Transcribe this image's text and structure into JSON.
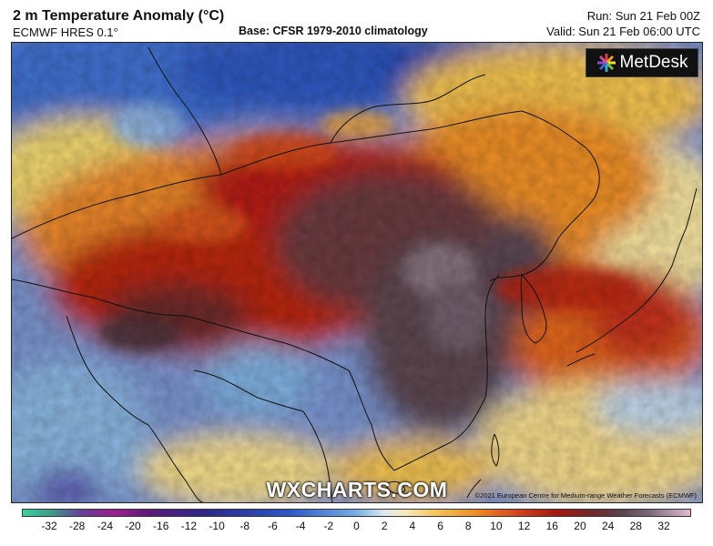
{
  "header": {
    "title": "2 m Temperature Anomaly (°C)",
    "model": "ECMWF HRES 0.1°",
    "base": "Base: CFSR 1979-2010 climatology",
    "run": "Run: Sun 21 Feb 00Z",
    "valid": "Valid: Sun 21 Feb 06:00 UTC"
  },
  "branding": {
    "logo_text": "MetDesk",
    "logo_icon": "metdesk-burst-icon",
    "watermark": "WXCHARTS.COM",
    "credit": "©2021 European Centre for Medium-range Weather Forecasts (ECMWF)"
  },
  "colorbar": {
    "ticks": [
      "-32",
      "-28",
      "-24",
      "-20",
      "-16",
      "-12",
      "-10",
      "-8",
      "-6",
      "-4",
      "-2",
      "0",
      "2",
      "4",
      "6",
      "8",
      "10",
      "12",
      "16",
      "20",
      "24",
      "28",
      "32"
    ],
    "colors": {
      "extreme_warm": "#6b4a55",
      "very_warm": "#a2180f",
      "warm": "#ee8a25",
      "mild": "#f5ecc0",
      "cool": "#76aee3",
      "cold": "#2e57c7"
    }
  }
}
